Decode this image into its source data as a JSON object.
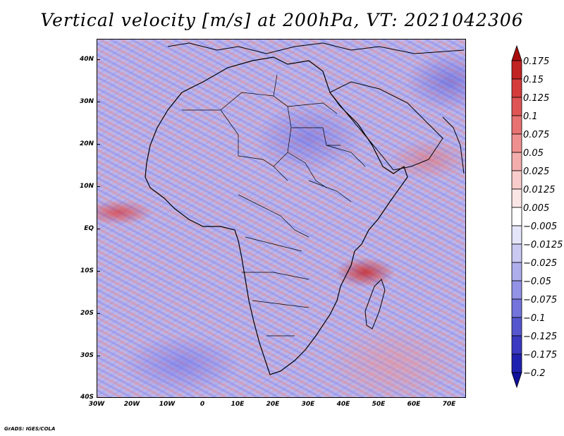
{
  "title": "Vertical velocity [m/s] at 200hPa, VT: 2021042306",
  "lat_labels": [
    "40N",
    "30N",
    "20N",
    "10N",
    "EQ",
    "10S",
    "20S",
    "30S",
    "40S"
  ],
  "lon_labels": [
    "30W",
    "20W",
    "10W",
    "0",
    "10E",
    "20E",
    "30E",
    "40E",
    "50E",
    "60E",
    "70E"
  ],
  "colorbar": {
    "labels": [
      "0.175",
      "0.15",
      "0.125",
      "0.1",
      "0.075",
      "0.05",
      "0.025",
      "0.0125",
      "0.005",
      "−0.005",
      "−0.0125",
      "−0.025",
      "−0.05",
      "−0.075",
      "−0.1",
      "−0.125",
      "−0.175",
      "−0.2"
    ],
    "colors": [
      "#a80d0d",
      "#c12222",
      "#d43b3b",
      "#df5555",
      "#e87272",
      "#ef9090",
      "#f4adad",
      "#f9cccc",
      "#fbe6e6",
      "#ffffff",
      "#e5e5f9",
      "#c9c9f2",
      "#aeaeec",
      "#9393e6",
      "#7474dc",
      "#5656cf",
      "#3a3ac2",
      "#2020b0",
      "#10109a"
    ]
  },
  "footer": "GrADS: IGES/COLA"
}
